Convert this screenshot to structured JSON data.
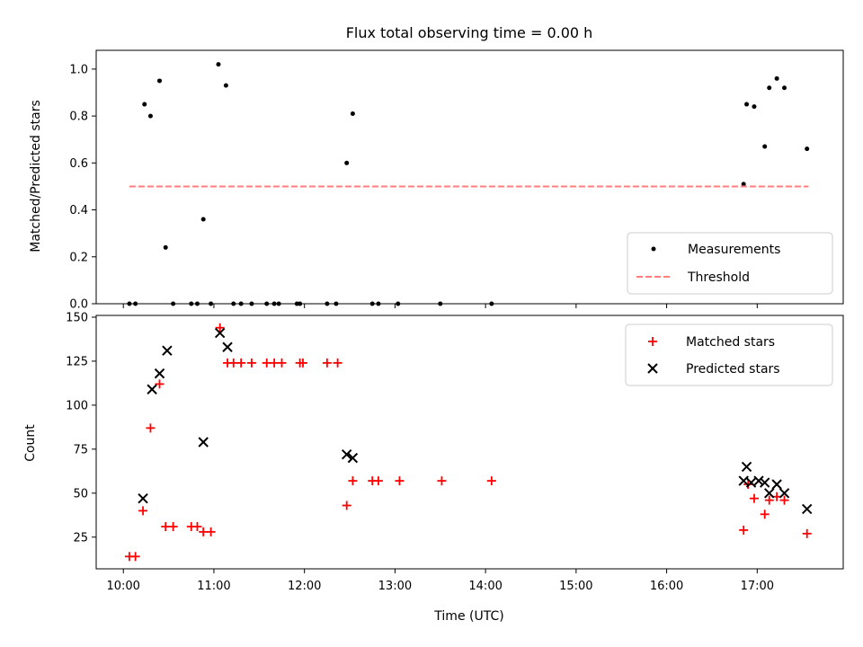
{
  "chart_data": [
    {
      "type": "scatter",
      "title": "Flux total observing time = 0.00 h",
      "ylabel": "Matched/Predicted stars",
      "xlabel": "",
      "ylim": [
        0,
        1.08
      ],
      "xlim": [
        "09:42",
        "17:57"
      ],
      "y_ticks": [
        "0.0",
        "0.2",
        "0.4",
        "0.6",
        "0.8",
        "1.0"
      ],
      "legend_position": "lower-right",
      "series": [
        {
          "name": "Measurements",
          "marker": "dot",
          "color": "#000000",
          "points": [
            [
              "10:04",
              0.0
            ],
            [
              "10:08",
              0.0
            ],
            [
              "10:14",
              0.85
            ],
            [
              "10:18",
              0.8
            ],
            [
              "10:24",
              0.95
            ],
            [
              "10:28",
              0.24
            ],
            [
              "10:33",
              0.0
            ],
            [
              "10:45",
              0.0
            ],
            [
              "10:49",
              0.0
            ],
            [
              "10:53",
              0.36
            ],
            [
              "10:58",
              0.0
            ],
            [
              "11:03",
              1.02
            ],
            [
              "11:08",
              0.93
            ],
            [
              "11:13",
              0.0
            ],
            [
              "11:18",
              0.0
            ],
            [
              "11:25",
              0.0
            ],
            [
              "11:35",
              0.0
            ],
            [
              "11:40",
              0.0
            ],
            [
              "11:43",
              0.0
            ],
            [
              "11:55",
              0.0
            ],
            [
              "11:57",
              0.0
            ],
            [
              "12:15",
              0.0
            ],
            [
              "12:21",
              0.0
            ],
            [
              "12:28",
              0.6
            ],
            [
              "12:32",
              0.81
            ],
            [
              "12:45",
              0.0
            ],
            [
              "12:49",
              0.0
            ],
            [
              "13:02",
              0.0
            ],
            [
              "13:30",
              0.0
            ],
            [
              "14:04",
              0.0
            ],
            [
              "16:51",
              0.51
            ],
            [
              "16:53",
              0.85
            ],
            [
              "16:58",
              0.84
            ],
            [
              "17:05",
              0.67
            ],
            [
              "17:08",
              0.92
            ],
            [
              "17:13",
              0.96
            ],
            [
              "17:18",
              0.92
            ],
            [
              "17:33",
              0.66
            ]
          ]
        },
        {
          "name": "Threshold",
          "marker": "dashed-line",
          "color": "#ff7f7f",
          "points": [
            [
              "10:04",
              0.5
            ],
            [
              "17:34",
              0.5
            ]
          ]
        }
      ]
    },
    {
      "type": "scatter",
      "title": "",
      "ylabel": "Count",
      "xlabel": "Time (UTC)",
      "ylim": [
        7,
        151
      ],
      "xlim": [
        "09:42",
        "17:57"
      ],
      "y_ticks": [
        "25",
        "50",
        "75",
        "100",
        "125",
        "150"
      ],
      "x_ticks": [
        "10:00",
        "11:00",
        "12:00",
        "13:00",
        "14:00",
        "15:00",
        "16:00",
        "17:00"
      ],
      "legend_position": "upper-right",
      "series": [
        {
          "name": "Matched stars",
          "marker": "plus",
          "color": "#ff0000",
          "points": [
            [
              "10:04",
              14
            ],
            [
              "10:08",
              14
            ],
            [
              "10:13",
              40
            ],
            [
              "10:18",
              87
            ],
            [
              "10:24",
              112
            ],
            [
              "10:28",
              31
            ],
            [
              "10:33",
              31
            ],
            [
              "10:45",
              31
            ],
            [
              "10:49",
              31
            ],
            [
              "10:53",
              28
            ],
            [
              "10:58",
              28
            ],
            [
              "11:04",
              144
            ],
            [
              "11:09",
              124
            ],
            [
              "11:13",
              124
            ],
            [
              "11:18",
              124
            ],
            [
              "11:25",
              124
            ],
            [
              "11:35",
              124
            ],
            [
              "11:40",
              124
            ],
            [
              "11:45",
              124
            ],
            [
              "11:57",
              124
            ],
            [
              "11:59",
              124
            ],
            [
              "12:15",
              124
            ],
            [
              "12:22",
              124
            ],
            [
              "12:28",
              43
            ],
            [
              "12:32",
              57
            ],
            [
              "12:45",
              57
            ],
            [
              "12:49",
              57
            ],
            [
              "13:03",
              57
            ],
            [
              "13:31",
              57
            ],
            [
              "14:04",
              57
            ],
            [
              "16:51",
              29
            ],
            [
              "16:54",
              55
            ],
            [
              "16:58",
              47
            ],
            [
              "17:05",
              38
            ],
            [
              "17:08",
              46
            ],
            [
              "17:13",
              48
            ],
            [
              "17:18",
              46
            ],
            [
              "17:33",
              27
            ]
          ]
        },
        {
          "name": "Predicted stars",
          "marker": "x",
          "color": "#000000",
          "points": [
            [
              "10:13",
              47
            ],
            [
              "10:19",
              109
            ],
            [
              "10:24",
              118
            ],
            [
              "10:29",
              131
            ],
            [
              "10:53",
              79
            ],
            [
              "11:04",
              141
            ],
            [
              "11:09",
              133
            ],
            [
              "12:28",
              72
            ],
            [
              "12:32",
              70
            ],
            [
              "16:51",
              57
            ],
            [
              "16:53",
              65
            ],
            [
              "16:56",
              56
            ],
            [
              "17:01",
              57
            ],
            [
              "17:05",
              56
            ],
            [
              "17:08",
              50
            ],
            [
              "17:13",
              55
            ],
            [
              "17:18",
              50
            ],
            [
              "17:33",
              41
            ]
          ]
        }
      ]
    }
  ]
}
